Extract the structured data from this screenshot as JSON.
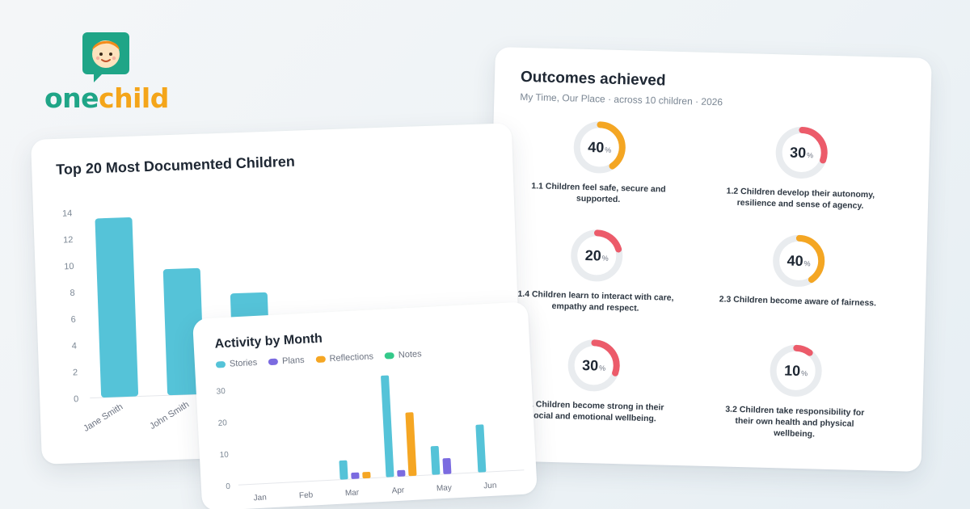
{
  "brand": {
    "name_part1": "one",
    "name_part2": "child",
    "logo_icon": "child-face-chat-icon"
  },
  "colors": {
    "stories": "#55c3d8",
    "plans": "#7b6be0",
    "reflections": "#f5a623",
    "notes": "#34c98a",
    "ring_orange": "#f4a623",
    "ring_red": "#ec5b6a",
    "ring_track": "#e9ecef",
    "brand_green": "#1fa587",
    "brand_orange": "#f4a51a"
  },
  "outcomes_card": {
    "title": "Outcomes achieved",
    "subtitle": "My Time, Our Place · across 10 children · 2026",
    "items": [
      {
        "value": 40,
        "color": "orange",
        "text_line1": "1.1 Children feel safe, secure and",
        "text_line2": "supported.",
        "text_line3": ""
      },
      {
        "value": 30,
        "color": "red",
        "text_line1": "1.2 Children develop their autonomy,",
        "text_line2": "resilience and sense of agency.",
        "text_line3": ""
      },
      {
        "value": 20,
        "color": "red",
        "text_line1": "1.4 Children learn to interact with care,",
        "text_line2": "empathy and respect.",
        "text_line3": ""
      },
      {
        "value": 40,
        "color": "orange",
        "text_line1": "2.3 Children become aware of fairness.",
        "text_line2": "",
        "text_line3": ""
      },
      {
        "value": 30,
        "color": "red",
        "text_line1": "3.1 Children become strong in their",
        "text_line2": "social and emotional wellbeing.",
        "text_line3": ""
      },
      {
        "value": 10,
        "color": "red",
        "text_line1": "3.2 Children take responsibility for",
        "text_line2": "their own health and physical",
        "text_line3": "wellbeing."
      }
    ],
    "percent_sign": "%"
  },
  "chart_data": [
    {
      "type": "bar",
      "title": "Top 20 Most Documented Children",
      "categories": [
        "Jane Smith",
        "John Smith",
        ""
      ],
      "values": [
        13.5,
        9.5,
        7.5
      ],
      "ylim": [
        0,
        14
      ],
      "yticks": [
        "0",
        "2",
        "4",
        "6",
        "8",
        "10",
        "12",
        "14"
      ],
      "grid": false
    },
    {
      "type": "bar",
      "title": "Activity by Month",
      "categories": [
        "Jan",
        "Feb",
        "Mar",
        "Apr",
        "May",
        "Jun"
      ],
      "series": [
        {
          "name": "Stories",
          "values": [
            0,
            0,
            6,
            32,
            9,
            15
          ]
        },
        {
          "name": "Plans",
          "values": [
            0,
            0,
            2,
            2,
            5,
            0
          ]
        },
        {
          "name": "Reflections",
          "values": [
            0,
            0,
            2,
            20,
            0,
            0
          ]
        },
        {
          "name": "Notes",
          "values": [
            0,
            0,
            0,
            0,
            0,
            0
          ]
        }
      ],
      "ylim": [
        0,
        30
      ],
      "yticks": [
        "0",
        "10",
        "20",
        "30"
      ],
      "legend": "top-left",
      "grid": false
    }
  ]
}
